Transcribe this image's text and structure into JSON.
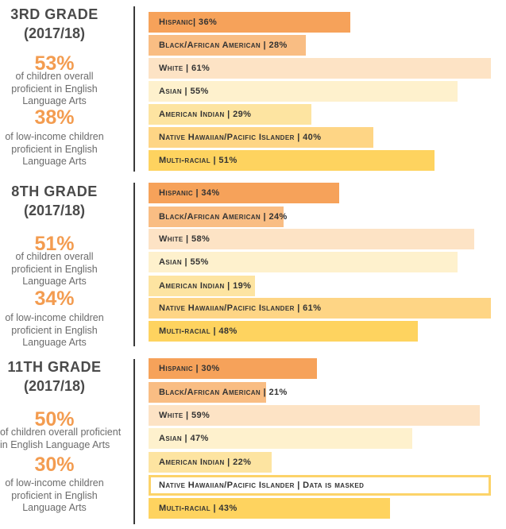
{
  "colors": {
    "Hispanic": "#f6a25a",
    "Black/African American": "#f9bd83",
    "White": "#fde3c5",
    "Asian": "#fef1cd",
    "American Indian": "#fde4a1",
    "Native Hawaiian/Pacific Islander": "#fed585",
    "Multi-racial": "#fed35f"
  },
  "sections": [
    {
      "grade": "3RD GRADE",
      "year": "(2017/18)",
      "overall_pct": "53%",
      "overall_desc": [
        "of children overall",
        "proficient in English",
        "Language Arts"
      ],
      "lowincome_pct": "38%",
      "lowincome_desc": [
        "of low-income children",
        "proficient in English",
        "Language Arts"
      ]
    },
    {
      "grade": "8TH GRADE",
      "year": "(2017/18)",
      "overall_pct": "51%",
      "overall_desc": [
        "of children overall",
        "proficient in English",
        "Language Arts"
      ],
      "lowincome_pct": "34%",
      "lowincome_desc": [
        "of low-income children",
        "proficient in English",
        "Language Arts"
      ]
    },
    {
      "grade": "11TH GRADE",
      "year": "(2017/18)",
      "overall_pct": "50%",
      "overall_desc": [
        "of children overall proficient",
        "in English Language Arts"
      ],
      "lowincome_pct": "30%",
      "lowincome_desc": [
        "of low-income children",
        "proficient in English",
        "Language Arts"
      ]
    }
  ],
  "chart_data": [
    {
      "type": "bar",
      "title": "3RD GRADE (2017/18)",
      "xlim": [
        0,
        61
      ],
      "categories": [
        "Hispanic",
        "Black/African American",
        "White",
        "Asian",
        "American Indian",
        "Native Hawaiian/Pacific Islander",
        "Multi-racial"
      ],
      "values": [
        36,
        28,
        61,
        55,
        29,
        40,
        51
      ],
      "labels": [
        "Hispanic| 36%",
        "Black/African American | 28%",
        "White | 61%",
        "Asian | 55%",
        "American Indian | 29%",
        "Native Hawaiian/Pacific Islander | 40%",
        "Multi-racial | 51%"
      ]
    },
    {
      "type": "bar",
      "title": "8TH GRADE (2017/18)",
      "xlim": [
        0,
        61
      ],
      "categories": [
        "Hispanic",
        "Black/African American",
        "White",
        "Asian",
        "American Indian",
        "Native Hawaiian/Pacific Islander",
        "Multi-racial"
      ],
      "values": [
        34,
        24,
        58,
        55,
        19,
        61,
        48
      ],
      "labels": [
        "Hispanic | 34%",
        "Black/African American | 24%",
        "White | 58%",
        "Asian | 55%",
        "American Indian | 19%",
        "Native Hawaiian/Pacific Islander | 61%",
        "Multi-racial | 48%"
      ]
    },
    {
      "type": "bar",
      "title": "11TH GRADE (2017/18)",
      "xlim": [
        0,
        61
      ],
      "categories": [
        "Hispanic",
        "Black/African American",
        "White",
        "Asian",
        "American Indian",
        "Native Hawaiian/Pacific Islander",
        "Multi-racial"
      ],
      "values": [
        30,
        21,
        59,
        47,
        22,
        null,
        43
      ],
      "labels": [
        "Hispanic | 30%",
        "Black/African American | 21%",
        "White | 59%",
        "Asian | 47%",
        "American Indian | 22%",
        "Native Hawaiian/Pacific Islander | Data is masked",
        "Multi-racial | 43%"
      ]
    }
  ]
}
